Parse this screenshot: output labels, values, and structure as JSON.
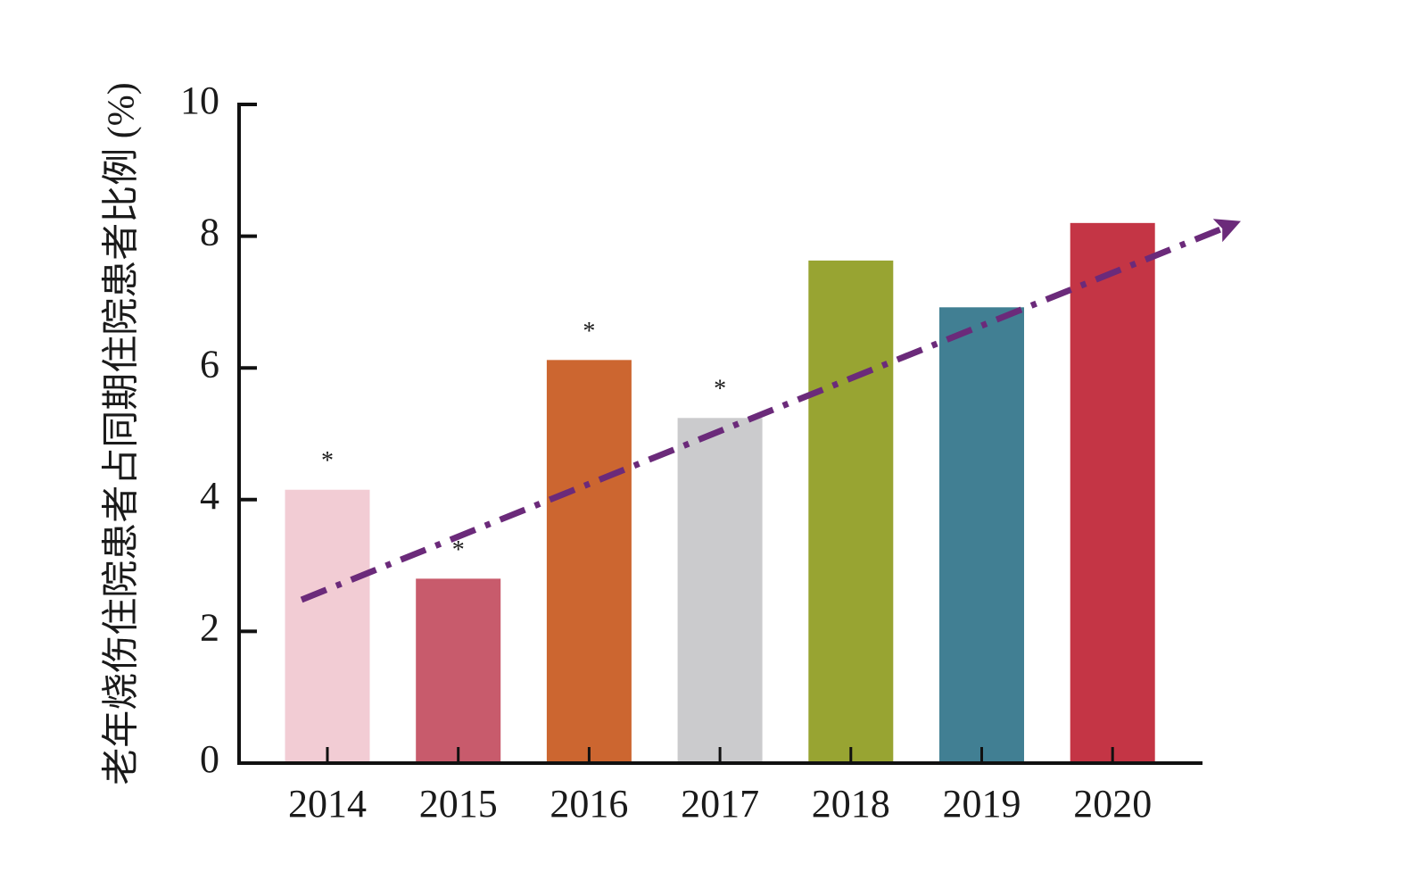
{
  "chart_data": {
    "type": "bar",
    "y_label": "老年烧伤住院患者占同期住院患者比例 (%)",
    "categories": [
      "2014",
      "2015",
      "2016",
      "2017",
      "2018",
      "2019",
      "2020"
    ],
    "values": [
      4.15,
      2.8,
      6.12,
      5.24,
      7.63,
      6.92,
      8.2
    ],
    "colors": [
      "#f2ccd4",
      "#c85b6c",
      "#cc6630",
      "#cbcbcd",
      "#98a432",
      "#417f93",
      "#c43545"
    ],
    "significance": [
      "*",
      "*",
      "*",
      "*",
      null,
      null,
      null
    ],
    "ylim": [
      0,
      10
    ],
    "yticks": [
      0,
      2,
      4,
      6,
      8,
      10
    ],
    "grid": false
  }
}
